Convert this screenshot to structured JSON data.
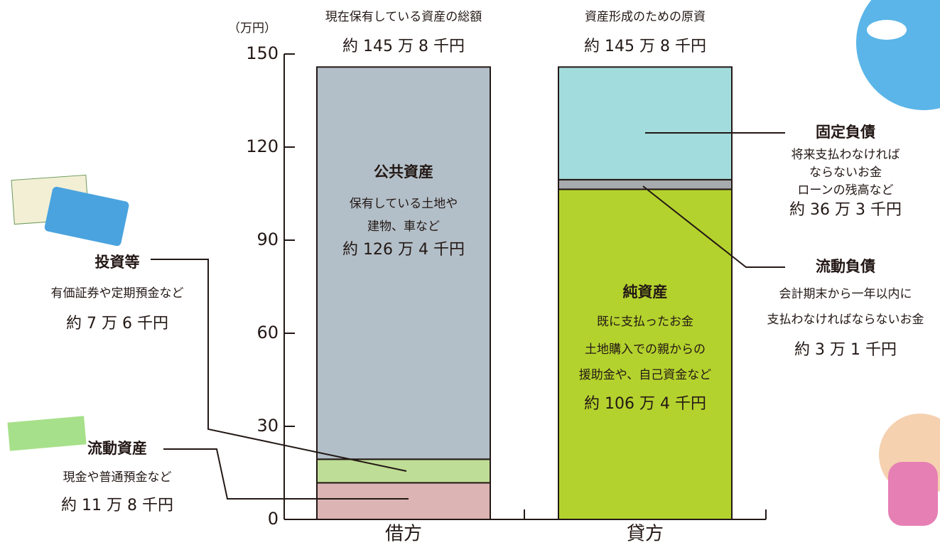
{
  "chart_data": {
    "type": "stacked_bar",
    "y_unit": "（万円）",
    "categories": [
      "借方",
      "貸方"
    ],
    "captions": [
      "現在保有している資産の総額",
      "資産形成のための原資"
    ],
    "total_labels": [
      "約 145 万 8 千円",
      "約 145 万 8 千円"
    ],
    "ylim": [
      0,
      150
    ],
    "yticks": [
      0,
      30,
      60,
      90,
      120,
      150
    ],
    "series": [
      {
        "name": "流動資産",
        "description": [
          "現金や普通預金など"
        ],
        "color": "#dcb4b4",
        "values": [
          11.8,
          null
        ],
        "value_labels": [
          "約 11 万 8 千円",
          null
        ]
      },
      {
        "name": "投資等",
        "description": [
          "有価証券や定期預金など"
        ],
        "color": "#bedd96",
        "values": [
          7.6,
          null
        ],
        "value_labels": [
          "約 7 万 6 千円",
          null
        ]
      },
      {
        "name": "公共資産",
        "description": [
          "保有している土地や",
          "建物、車など"
        ],
        "color": "#b3bfc8",
        "values": [
          126.4,
          null
        ],
        "value_labels": [
          "約 126 万 4 千円",
          null
        ]
      },
      {
        "name": "純資産",
        "description": [
          "既に支払ったお金",
          "土地購入での親からの",
          "援助金や、自己資金など"
        ],
        "color": "#b4d22d",
        "values": [
          null,
          106.4
        ],
        "value_labels": [
          null,
          "約 106 万 4 千円"
        ]
      },
      {
        "name": "流動負債",
        "description": [
          "会計期末から一年以内に",
          "支払わなければならないお金"
        ],
        "color": "#a8abad",
        "values": [
          null,
          3.1
        ],
        "value_labels": [
          null,
          "約 3 万 1 千円"
        ]
      },
      {
        "name": "固定負債",
        "description": [
          "将来支払わなければ",
          "ならないお金",
          "ローンの残高など"
        ],
        "color": "#a3dcdc",
        "values": [
          null,
          36.3
        ],
        "value_labels": [
          null,
          "約 36 万 3 千円"
        ]
      }
    ]
  }
}
